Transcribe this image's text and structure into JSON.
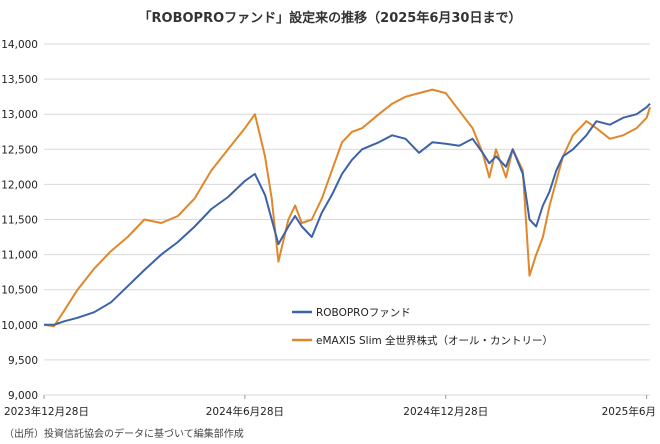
{
  "chart_data": {
    "type": "line",
    "title": "「ROBOPROファンド」設定来の推移（2025年6月30日まで）",
    "xlabel": "",
    "ylabel": "",
    "ylim": [
      9000,
      14000
    ],
    "yticks": [
      9000,
      9500,
      10000,
      10500,
      11000,
      11500,
      12000,
      12500,
      13000,
      13500,
      14000
    ],
    "ytick_labels": [
      "9,000",
      "9,500",
      "10,000",
      "10,500",
      "11,000",
      "11,500",
      "12,000",
      "12,500",
      "13,000",
      "13,500",
      "14,000"
    ],
    "xlim": [
      0,
      18.1
    ],
    "xticks": [
      0,
      6,
      12,
      18
    ],
    "xtick_labels": [
      "2023年12月28日",
      "2024年6月28日",
      "2024年12月28日",
      "2025年6月"
    ],
    "grid": "horizontal",
    "legend_position": "center-right",
    "series": [
      {
        "name": "ROBOPROファンド",
        "color": "#3c62a8",
        "x": [
          0,
          0.3,
          0.6,
          1.0,
          1.5,
          2.0,
          2.5,
          3.0,
          3.5,
          4.0,
          4.5,
          5.0,
          5.5,
          6.0,
          6.3,
          6.6,
          6.8,
          7.0,
          7.3,
          7.5,
          7.7,
          8.0,
          8.3,
          8.6,
          8.9,
          9.2,
          9.5,
          10.0,
          10.4,
          10.8,
          11.2,
          11.6,
          12.0,
          12.4,
          12.8,
          13.1,
          13.3,
          13.5,
          13.8,
          14.0,
          14.3,
          14.5,
          14.7,
          14.9,
          15.1,
          15.3,
          15.5,
          15.8,
          16.2,
          16.5,
          16.9,
          17.3,
          17.7,
          18.0,
          18.1
        ],
        "values": [
          10000,
          10000,
          10050,
          10100,
          10180,
          10320,
          10550,
          10780,
          11000,
          11180,
          11400,
          11650,
          11820,
          12050,
          12150,
          11850,
          11500,
          11150,
          11400,
          11550,
          11400,
          11250,
          11600,
          11850,
          12150,
          12350,
          12500,
          12600,
          12700,
          12650,
          12450,
          12600,
          12580,
          12550,
          12650,
          12450,
          12300,
          12400,
          12250,
          12500,
          12150,
          11500,
          11400,
          11700,
          11900,
          12200,
          12400,
          12500,
          12700,
          12900,
          12850,
          12950,
          13000,
          13100,
          13150
        ]
      },
      {
        "name": "eMAXIS Slim 全世界株式（オール・カントリー）",
        "color": "#e0872b",
        "x": [
          0,
          0.3,
          0.6,
          1.0,
          1.5,
          2.0,
          2.5,
          3.0,
          3.5,
          4.0,
          4.5,
          5.0,
          5.5,
          6.0,
          6.3,
          6.6,
          6.8,
          7.0,
          7.3,
          7.5,
          7.7,
          8.0,
          8.3,
          8.6,
          8.9,
          9.2,
          9.5,
          10.0,
          10.4,
          10.8,
          11.2,
          11.6,
          12.0,
          12.4,
          12.8,
          13.1,
          13.3,
          13.5,
          13.8,
          14.0,
          14.3,
          14.5,
          14.7,
          14.9,
          15.1,
          15.3,
          15.5,
          15.8,
          16.2,
          16.5,
          16.9,
          17.3,
          17.7,
          18.0,
          18.1
        ],
        "values": [
          10000,
          9980,
          10200,
          10500,
          10800,
          11050,
          11250,
          11500,
          11450,
          11550,
          11800,
          12200,
          12500,
          12800,
          13000,
          12400,
          11800,
          10900,
          11500,
          11700,
          11450,
          11500,
          11800,
          12200,
          12600,
          12750,
          12800,
          13000,
          13150,
          13250,
          13300,
          13350,
          13300,
          13050,
          12800,
          12450,
          12100,
          12500,
          12100,
          12500,
          12200,
          10700,
          11000,
          11250,
          11700,
          12050,
          12400,
          12700,
          12900,
          12800,
          12650,
          12700,
          12800,
          12950,
          13100
        ]
      }
    ]
  },
  "source_note": "（出所）投資信託協会のデータに基づいて編集部作成"
}
